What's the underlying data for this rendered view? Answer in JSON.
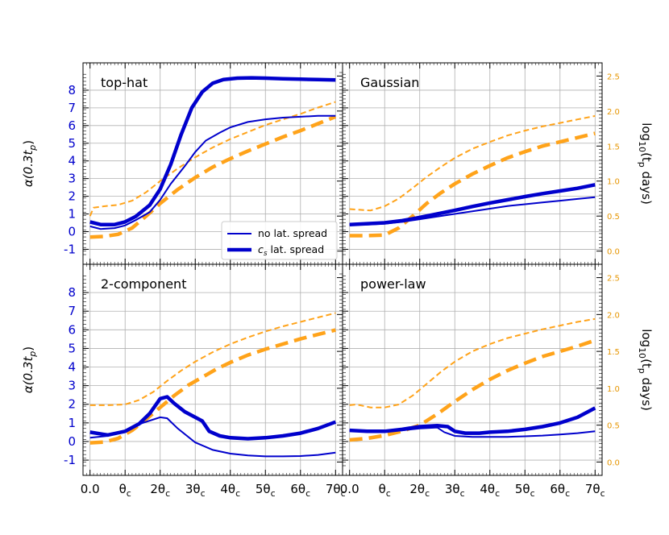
{
  "chart_data": {
    "type": "line",
    "left_axis_label": "α(0.3t",
    "left_axis_label_sub": "p",
    "left_axis_label_end": ")",
    "right_axis_label": "log",
    "right_axis_label_sub1": "10",
    "right_axis_label_mid": "(t",
    "right_axis_label_sub2": "p",
    "right_axis_label_end": " days)",
    "xlim": [
      -0.2,
      7.2
    ],
    "ylim_left": [
      -1.3,
      9.0
    ],
    "ylim_right": [
      -0.05,
      2.55
    ],
    "xticks": [
      {
        "value": 0,
        "label": "0.0"
      },
      {
        "value": 1,
        "label": "θ",
        "sub": "c"
      },
      {
        "value": 2,
        "label": "2θ",
        "sub": "c"
      },
      {
        "value": 3,
        "label": "3θ",
        "sub": "c"
      },
      {
        "value": 4,
        "label": "4θ",
        "sub": "c"
      },
      {
        "value": 5,
        "label": "5θ",
        "sub": "c"
      },
      {
        "value": 6,
        "label": "6θ",
        "sub": "c"
      },
      {
        "value": 7,
        "label": "7θ",
        "sub": "c"
      }
    ],
    "yticks_left": [
      -1,
      0,
      1,
      2,
      3,
      4,
      5,
      6,
      7,
      8
    ],
    "yticks_right": [
      "0.0",
      "0.5",
      "1.0",
      "1.5",
      "2.0",
      "2.5"
    ],
    "legend": {
      "placement": "lower-right of top-left panel",
      "entries": [
        {
          "label": "no lat. spread",
          "style": "thin"
        },
        {
          "label_main": "c",
          "label_sub": "s",
          "label_end": " lat. spread",
          "style": "thick"
        }
      ]
    },
    "colors": {
      "alpha": "#0000cc",
      "tp": "#ffa31a"
    },
    "panels": [
      {
        "title": "top-hat",
        "alpha_no_spread": {
          "x": [
            0,
            0.3,
            0.7,
            1.0,
            1.3,
            1.7,
            2.0,
            2.3,
            2.7,
            3.0,
            3.3,
            3.7,
            4.0,
            4.5,
            5.0,
            5.5,
            6.0,
            6.5,
            7.0
          ],
          "y": [
            0.3,
            0.15,
            0.2,
            0.35,
            0.65,
            1.1,
            1.8,
            2.7,
            3.7,
            4.5,
            5.15,
            5.6,
            5.9,
            6.2,
            6.35,
            6.45,
            6.5,
            6.55,
            6.55
          ]
        },
        "alpha_cs_spread": {
          "x": [
            0,
            0.3,
            0.7,
            1.0,
            1.3,
            1.7,
            2.0,
            2.3,
            2.6,
            2.9,
            3.2,
            3.5,
            3.8,
            4.2,
            4.6,
            5.0,
            5.5,
            6.0,
            6.5,
            7.0
          ],
          "y": [
            0.55,
            0.4,
            0.4,
            0.55,
            0.85,
            1.5,
            2.4,
            3.8,
            5.5,
            7.0,
            7.9,
            8.4,
            8.6,
            8.68,
            8.7,
            8.68,
            8.65,
            8.62,
            8.6,
            8.58
          ]
        },
        "tp_no_spread": {
          "x": [
            0,
            0.1,
            0.4,
            0.8,
            1.2,
            1.6,
            2.0,
            2.5,
            3.0,
            3.5,
            4.0,
            4.5,
            5.0,
            5.5,
            6.0,
            6.5,
            7.0
          ],
          "y": [
            0.5,
            0.62,
            0.64,
            0.66,
            0.72,
            0.84,
            1.0,
            1.18,
            1.34,
            1.48,
            1.6,
            1.7,
            1.8,
            1.88,
            1.96,
            2.05,
            2.13
          ]
        },
        "tp_cs_spread": {
          "x": [
            0,
            0.4,
            0.8,
            1.2,
            1.6,
            2.0,
            2.5,
            3.0,
            3.5,
            4.0,
            4.5,
            5.0,
            5.5,
            6.0,
            6.5,
            7.0
          ],
          "y": [
            0.2,
            0.21,
            0.24,
            0.33,
            0.5,
            0.68,
            0.88,
            1.05,
            1.2,
            1.32,
            1.43,
            1.53,
            1.63,
            1.72,
            1.82,
            1.92
          ]
        }
      },
      {
        "title": "Gaussian",
        "alpha_no_spread": {
          "x": [
            0,
            0.5,
            1.0,
            1.5,
            2.0,
            2.5,
            3.0,
            3.5,
            4.0,
            4.5,
            5.0,
            5.5,
            6.0,
            6.5,
            7.0
          ],
          "y": [
            0.4,
            0.4,
            0.45,
            0.55,
            0.7,
            0.85,
            1.0,
            1.15,
            1.3,
            1.45,
            1.55,
            1.65,
            1.75,
            1.85,
            1.95
          ]
        },
        "alpha_cs_spread": {
          "x": [
            0,
            0.5,
            1.0,
            1.5,
            2.0,
            2.5,
            3.0,
            3.5,
            4.0,
            4.5,
            5.0,
            5.5,
            6.0,
            6.5,
            7.0
          ],
          "y": [
            0.4,
            0.45,
            0.5,
            0.62,
            0.8,
            1.0,
            1.2,
            1.42,
            1.62,
            1.8,
            1.98,
            2.15,
            2.3,
            2.45,
            2.65
          ]
        },
        "tp_no_spread": {
          "x": [
            0,
            0.3,
            0.6,
            1.0,
            1.4,
            1.8,
            2.2,
            2.6,
            3.0,
            3.5,
            4.0,
            4.5,
            5.0,
            5.5,
            6.0,
            6.5,
            7.0
          ],
          "y": [
            0.6,
            0.59,
            0.58,
            0.64,
            0.75,
            0.9,
            1.06,
            1.2,
            1.33,
            1.46,
            1.56,
            1.65,
            1.72,
            1.78,
            1.83,
            1.88,
            1.93
          ]
        },
        "tp_cs_spread": {
          "x": [
            0,
            0.5,
            1.0,
            1.4,
            1.8,
            2.2,
            2.6,
            3.0,
            3.5,
            4.0,
            4.5,
            5.0,
            5.5,
            6.0,
            6.5,
            7.0
          ],
          "y": [
            0.22,
            0.22,
            0.23,
            0.33,
            0.5,
            0.68,
            0.83,
            0.96,
            1.1,
            1.22,
            1.33,
            1.42,
            1.5,
            1.56,
            1.62,
            1.68
          ]
        }
      },
      {
        "title": "2-component",
        "alpha_no_spread": {
          "x": [
            0,
            0.5,
            1.0,
            1.5,
            2.0,
            2.2,
            2.5,
            3.0,
            3.5,
            4.0,
            4.5,
            5.0,
            5.5,
            6.0,
            6.5,
            7.0
          ],
          "y": [
            0.2,
            0.3,
            0.55,
            1.0,
            1.3,
            1.25,
            0.7,
            -0.05,
            -0.45,
            -0.65,
            -0.75,
            -0.8,
            -0.8,
            -0.78,
            -0.72,
            -0.6
          ]
        },
        "alpha_cs_spread": {
          "x": [
            0,
            0.5,
            1.0,
            1.4,
            1.7,
            2.0,
            2.2,
            2.4,
            2.7,
            3.0,
            3.2,
            3.4,
            3.7,
            4.0,
            4.5,
            5.0,
            5.5,
            6.0,
            6.5,
            7.0
          ],
          "y": [
            0.5,
            0.35,
            0.55,
            0.95,
            1.5,
            2.3,
            2.4,
            2.05,
            1.6,
            1.3,
            1.1,
            0.55,
            0.3,
            0.2,
            0.15,
            0.2,
            0.3,
            0.45,
            0.7,
            1.05
          ]
        },
        "tp_no_spread": {
          "x": [
            0,
            0.5,
            1.0,
            1.4,
            1.8,
            2.2,
            2.6,
            3.0,
            3.5,
            4.0,
            4.5,
            5.0,
            5.5,
            6.0,
            6.5,
            7.0
          ],
          "y": [
            0.77,
            0.77,
            0.78,
            0.84,
            0.95,
            1.1,
            1.24,
            1.36,
            1.49,
            1.6,
            1.69,
            1.77,
            1.84,
            1.9,
            1.96,
            2.02
          ]
        },
        "tp_cs_spread": {
          "x": [
            0,
            0.4,
            0.8,
            1.2,
            1.6,
            2.0,
            2.4,
            2.8,
            3.2,
            3.6,
            4.0,
            4.5,
            5.0,
            5.5,
            6.0,
            6.5,
            7.0
          ],
          "y": [
            0.26,
            0.27,
            0.32,
            0.43,
            0.58,
            0.74,
            0.9,
            1.04,
            1.15,
            1.26,
            1.35,
            1.45,
            1.53,
            1.6,
            1.67,
            1.73,
            1.79
          ]
        }
      },
      {
        "title": "power-law",
        "alpha_no_spread": {
          "x": [
            0,
            0.5,
            1.0,
            1.5,
            2.0,
            2.5,
            2.7,
            3.0,
            3.5,
            4.0,
            4.5,
            5.0,
            5.5,
            6.0,
            6.5,
            7.0
          ],
          "y": [
            0.6,
            0.55,
            0.55,
            0.6,
            0.7,
            0.75,
            0.5,
            0.3,
            0.25,
            0.25,
            0.25,
            0.28,
            0.32,
            0.38,
            0.45,
            0.55
          ]
        },
        "alpha_cs_spread": {
          "x": [
            0,
            0.5,
            1.0,
            1.5,
            2.0,
            2.5,
            2.8,
            3.0,
            3.3,
            3.7,
            4.0,
            4.5,
            5.0,
            5.5,
            6.0,
            6.5,
            7.0
          ],
          "y": [
            0.6,
            0.55,
            0.55,
            0.65,
            0.8,
            0.85,
            0.8,
            0.55,
            0.45,
            0.45,
            0.5,
            0.55,
            0.65,
            0.8,
            1.0,
            1.3,
            1.8
          ]
        },
        "tp_no_spread": {
          "x": [
            0,
            0.2,
            0.6,
            1.0,
            1.4,
            1.8,
            2.2,
            2.6,
            3.0,
            3.5,
            4.0,
            4.5,
            5.0,
            5.5,
            6.0,
            6.5,
            7.0
          ],
          "y": [
            0.77,
            0.78,
            0.74,
            0.74,
            0.78,
            0.9,
            1.06,
            1.22,
            1.36,
            1.5,
            1.6,
            1.68,
            1.74,
            1.8,
            1.85,
            1.9,
            1.94
          ]
        },
        "tp_cs_spread": {
          "x": [
            0,
            0.5,
            1.0,
            1.5,
            2.0,
            2.5,
            3.0,
            3.5,
            4.0,
            4.5,
            5.0,
            5.5,
            6.0,
            6.5,
            7.0
          ],
          "y": [
            0.3,
            0.32,
            0.36,
            0.42,
            0.5,
            0.65,
            0.82,
            0.98,
            1.12,
            1.24,
            1.34,
            1.43,
            1.5,
            1.57,
            1.65
          ]
        }
      }
    ]
  }
}
